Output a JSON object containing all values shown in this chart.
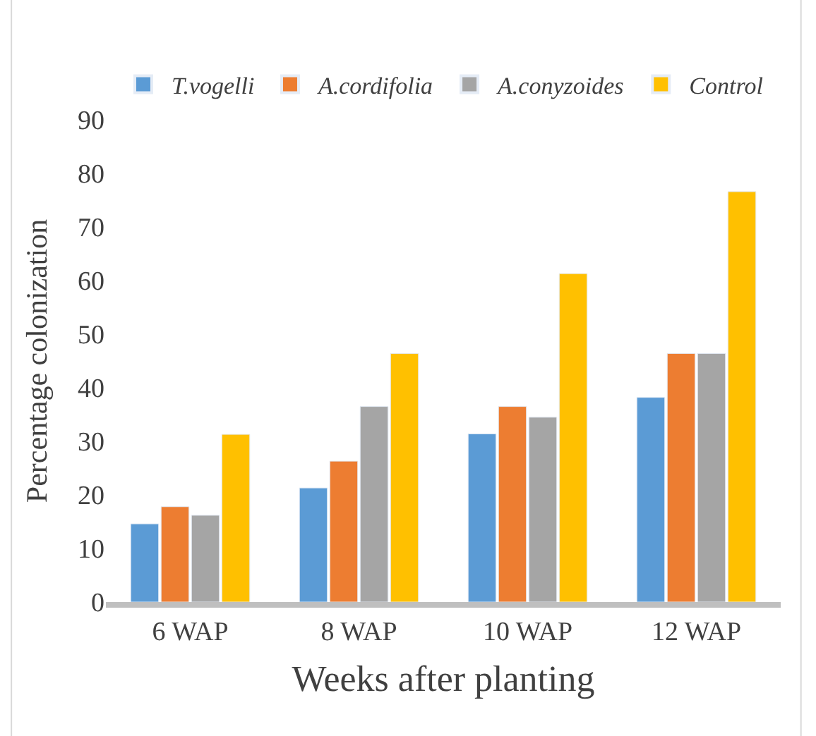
{
  "chart_data": {
    "type": "bar",
    "xlabel": "Weeks after planting",
    "ylabel": "Percentage colonization",
    "categories": [
      "6 WAP",
      "8 WAP",
      "10 WAP",
      "12 WAP"
    ],
    "series": [
      {
        "name": "T.vogelli",
        "color": "#5b9bd5",
        "values": [
          14.6,
          21.3,
          31.4,
          38.2
        ]
      },
      {
        "name": "A.cordifolia",
        "color": "#ed7d31",
        "values": [
          17.8,
          26.3,
          36.5,
          46.4
        ]
      },
      {
        "name": "A.conyzoides",
        "color": "#a5a5a5",
        "values": [
          16.2,
          36.5,
          34.5,
          46.4
        ]
      },
      {
        "name": "Control",
        "color": "#ffc000",
        "values": [
          31.3,
          46.4,
          61.3,
          76.6
        ]
      }
    ],
    "ylim": [
      0,
      90
    ],
    "yticks": [
      0,
      10,
      20,
      30,
      40,
      50,
      60,
      70,
      80,
      90
    ],
    "legend": "top"
  }
}
